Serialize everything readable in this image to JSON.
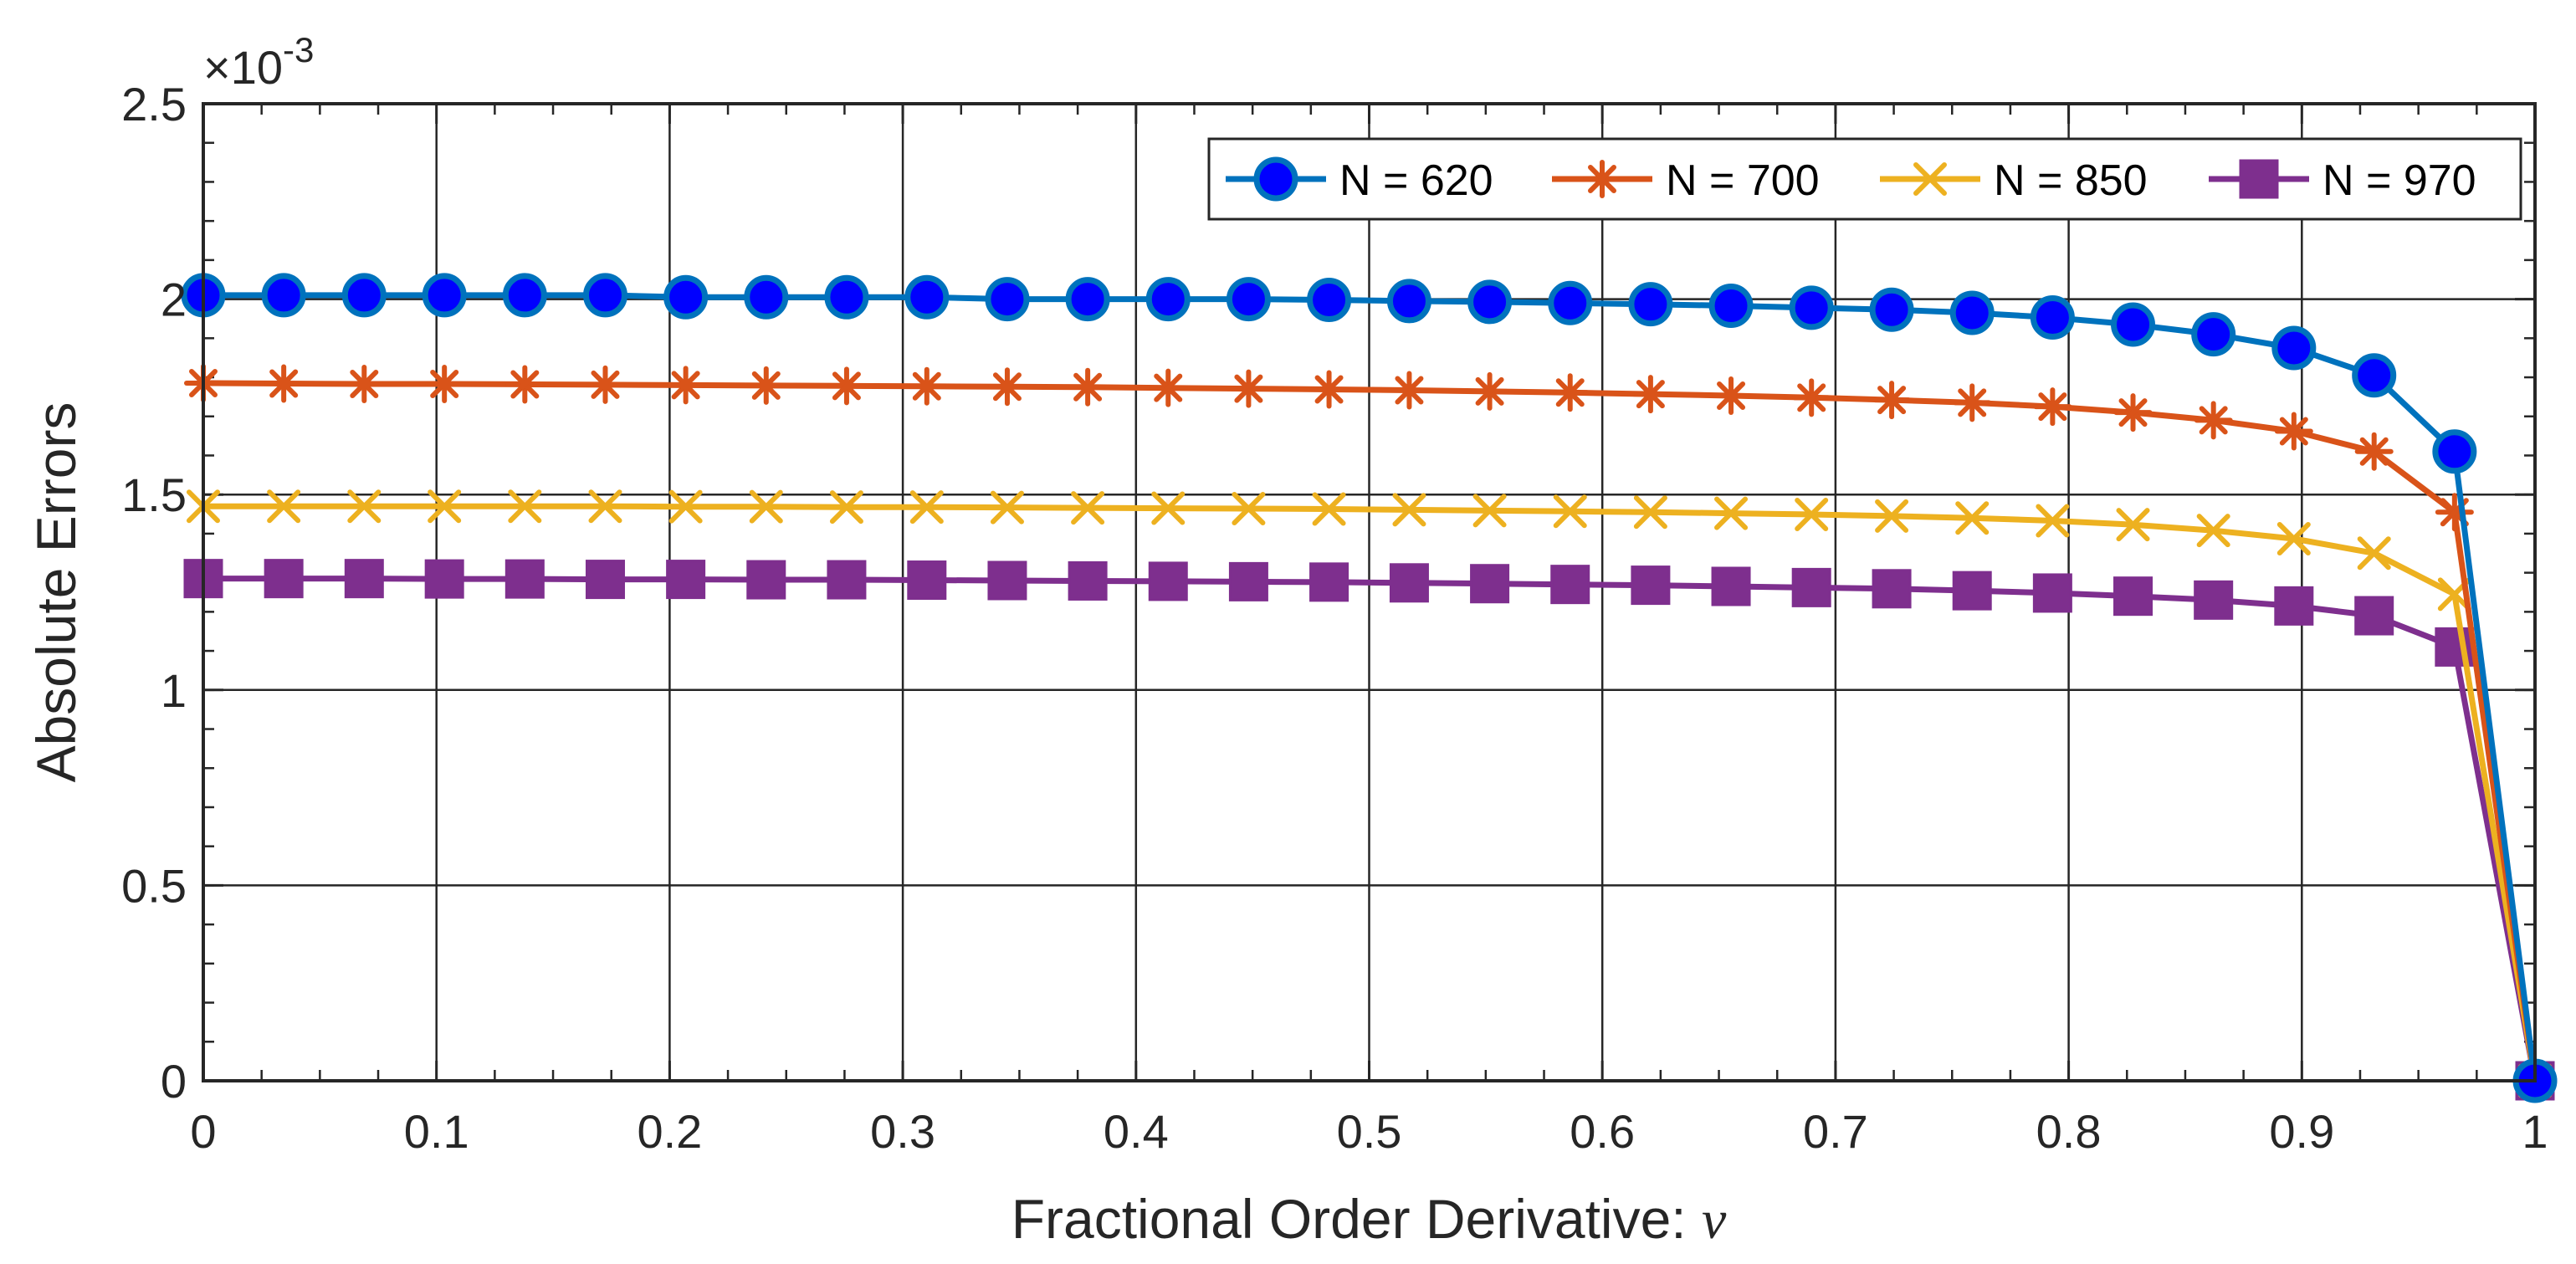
{
  "chart_data": {
    "type": "line",
    "xlabel": "Fractional Order Derivative: ",
    "xlabel_symbol": "ν",
    "ylabel": "Absolute Errors",
    "y_exponent_prefix": "×10",
    "y_exponent": "-3",
    "xlim": [
      0,
      1
    ],
    "ylim": [
      0,
      2.5
    ],
    "x_ticks": [
      0,
      0.1,
      0.2,
      0.3,
      0.4,
      0.5,
      0.6,
      0.7,
      0.8,
      0.9,
      1
    ],
    "x_tick_labels": [
      "0",
      "0.1",
      "0.2",
      "0.3",
      "0.4",
      "0.5",
      "0.6",
      "0.7",
      "0.8",
      "0.9",
      "1"
    ],
    "y_ticks": [
      0,
      0.5,
      1,
      1.5,
      2,
      2.5
    ],
    "y_tick_labels": [
      "0",
      "0.5",
      "1",
      "1.5",
      "2",
      "2.5"
    ],
    "grid": true,
    "legend_position": "top-right",
    "x": [
      0,
      0.0345,
      0.069,
      0.1034,
      0.1379,
      0.1724,
      0.2069,
      0.2414,
      0.2759,
      0.3103,
      0.3448,
      0.3793,
      0.4138,
      0.4483,
      0.4828,
      0.5172,
      0.5517,
      0.5862,
      0.6207,
      0.6552,
      0.6897,
      0.7241,
      0.7586,
      0.7931,
      0.8276,
      0.8621,
      0.8966,
      0.931,
      0.9655,
      1
    ],
    "series": [
      {
        "name": "N = 620",
        "color": "#0072BD",
        "marker": "circle",
        "marker_fill": "#0000FF",
        "values": [
          2.01,
          2.01,
          2.01,
          2.01,
          2.01,
          2.01,
          2.005,
          2.005,
          2.005,
          2.005,
          2.0,
          2.0,
          2.0,
          2.0,
          1.998,
          1.995,
          1.993,
          1.99,
          1.987,
          1.983,
          1.978,
          1.973,
          1.965,
          1.953,
          1.935,
          1.91,
          1.875,
          1.805,
          1.61,
          0
        ]
      },
      {
        "name": "N = 700",
        "color": "#D95319",
        "marker": "asterisk",
        "values": [
          1.785,
          1.784,
          1.783,
          1.783,
          1.782,
          1.781,
          1.78,
          1.779,
          1.778,
          1.777,
          1.776,
          1.775,
          1.773,
          1.771,
          1.769,
          1.767,
          1.764,
          1.761,
          1.757,
          1.753,
          1.748,
          1.742,
          1.735,
          1.725,
          1.71,
          1.69,
          1.662,
          1.61,
          1.455,
          0
        ]
      },
      {
        "name": "N = 850",
        "color": "#EDB120",
        "marker": "x",
        "values": [
          1.47,
          1.47,
          1.47,
          1.47,
          1.47,
          1.47,
          1.469,
          1.469,
          1.468,
          1.468,
          1.467,
          1.466,
          1.465,
          1.464,
          1.463,
          1.461,
          1.459,
          1.457,
          1.455,
          1.452,
          1.449,
          1.445,
          1.44,
          1.433,
          1.423,
          1.408,
          1.387,
          1.35,
          1.245,
          0
        ]
      },
      {
        "name": "N = 970",
        "color": "#7E2F8E",
        "marker": "square",
        "values": [
          1.285,
          1.285,
          1.285,
          1.284,
          1.284,
          1.283,
          1.283,
          1.282,
          1.282,
          1.281,
          1.28,
          1.279,
          1.278,
          1.277,
          1.276,
          1.274,
          1.272,
          1.27,
          1.268,
          1.265,
          1.262,
          1.259,
          1.254,
          1.248,
          1.24,
          1.23,
          1.215,
          1.19,
          1.11,
          0
        ]
      }
    ]
  }
}
